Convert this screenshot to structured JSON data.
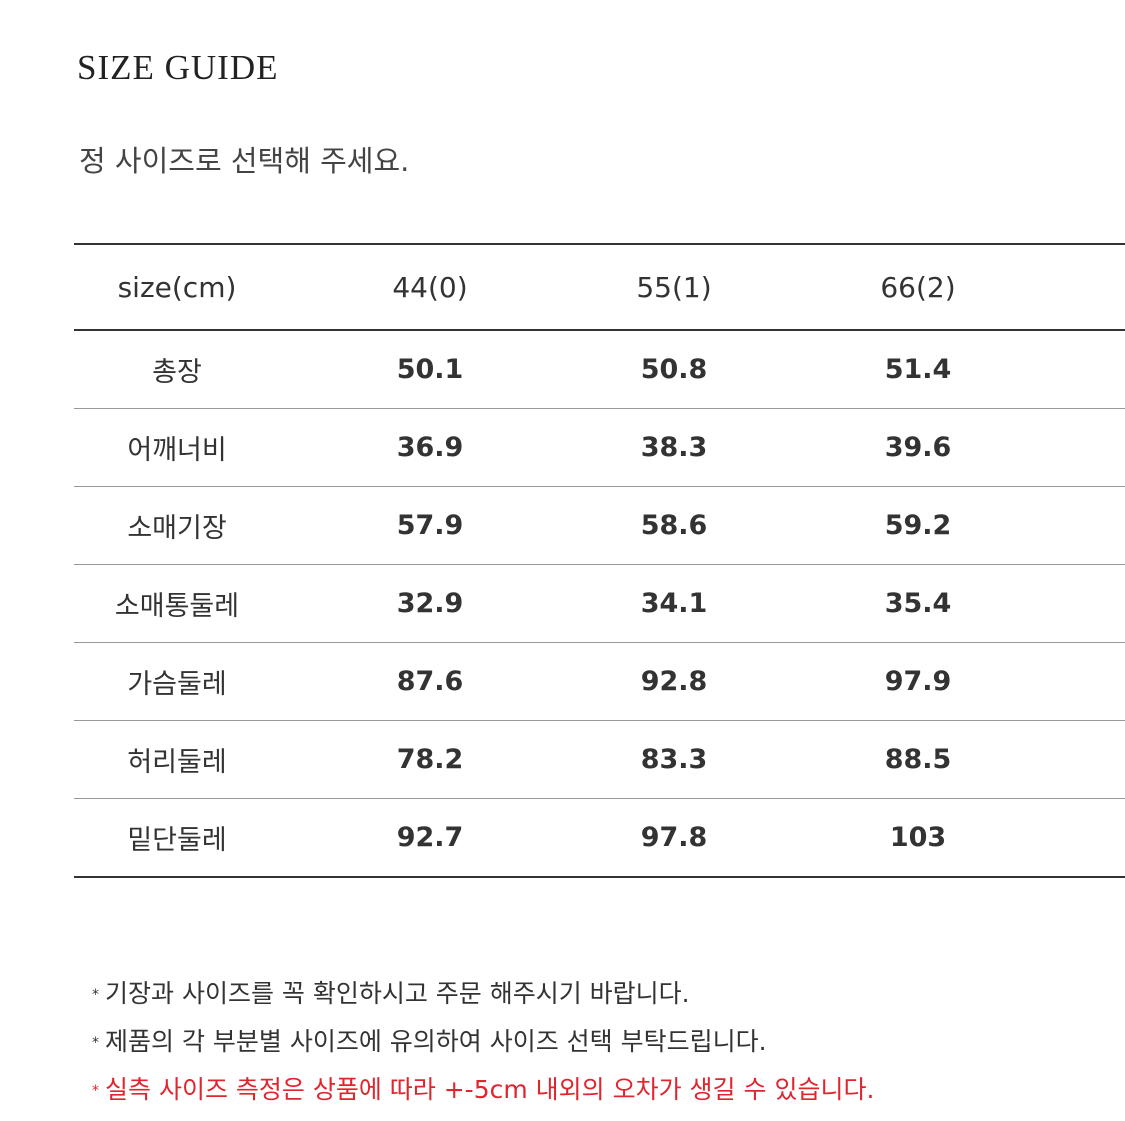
{
  "title": "SIZE GUIDE",
  "subtitle": "정 사이즈로 선택해 주세요.",
  "table": {
    "headers": [
      "size(cm)",
      "44(0)",
      "55(1)",
      "66(2)"
    ],
    "rows": [
      [
        "총장",
        "50.1",
        "50.8",
        "51.4"
      ],
      [
        "어깨너비",
        "36.9",
        "38.3",
        "39.6"
      ],
      [
        "소매기장",
        "57.9",
        "58.6",
        "59.2"
      ],
      [
        "소매통둘레",
        "32.9",
        "34.1",
        "35.4"
      ],
      [
        "가슴둘레",
        "87.6",
        "92.8",
        "97.9"
      ],
      [
        "허리둘레",
        "78.2",
        "83.3",
        "88.5"
      ],
      [
        "밑단둘레",
        "92.7",
        "97.8",
        "103"
      ]
    ]
  },
  "notes": [
    {
      "bullet": "*",
      "text": "기장과 사이즈를 꼭 확인하시고 주문 해주시기 바랍니다.",
      "color": "#333333"
    },
    {
      "bullet": "*",
      "text": "제품의 각 부분별 사이즈에 유의하여 사이즈 선택 부탁드립니다.",
      "color": "#333333"
    },
    {
      "bullet": "*",
      "text": "실측 사이즈 측정은 상품에 따라 +-5cm 내외의 오차가 생길 수 있습니다.",
      "color": "#e0252e"
    }
  ]
}
